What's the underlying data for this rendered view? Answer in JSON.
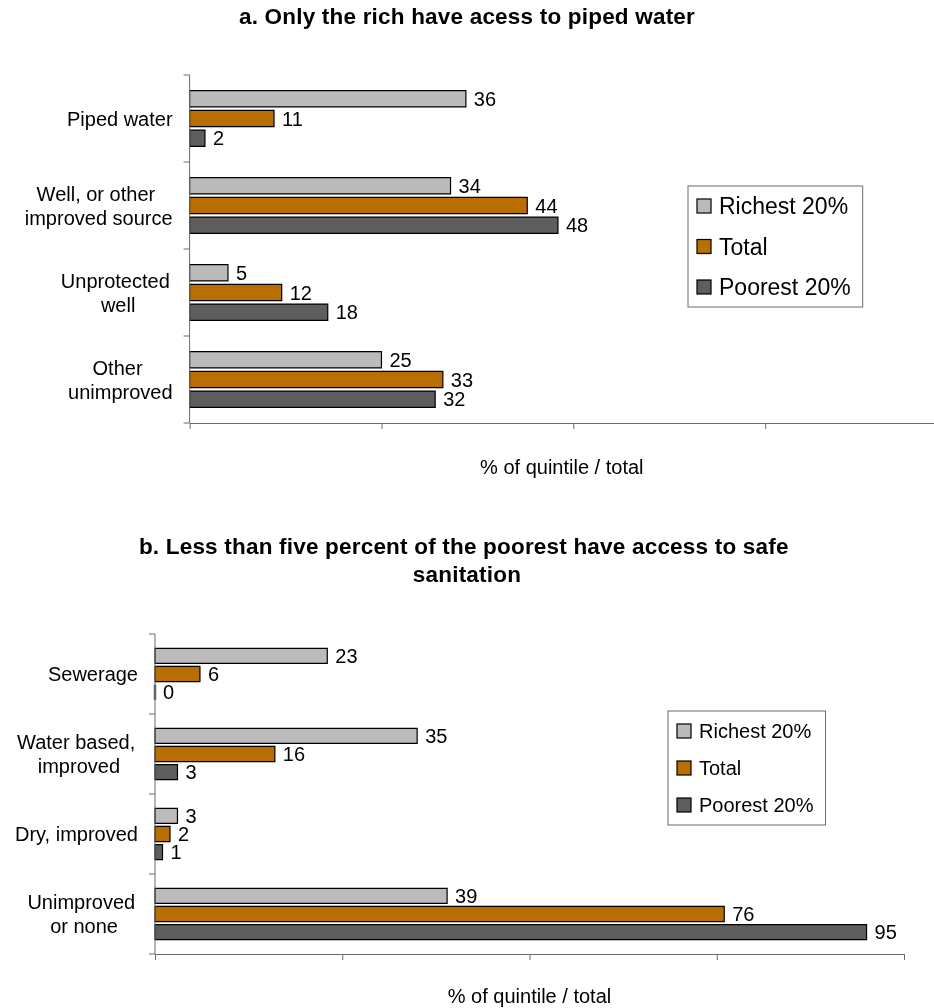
{
  "chart_data": [
    {
      "type": "bar",
      "orientation": "horizontal",
      "title": "a. Only the rich have acess to piped water",
      "xlabel": "% of quintile / total",
      "categories": [
        "Piped water",
        "Well, or other improved source",
        "Unprotected well",
        "Other unimproved"
      ],
      "series": [
        {
          "name": "Richest 20%",
          "color": "#bbbbbb",
          "values": [
            36,
            34,
            5,
            25
          ]
        },
        {
          "name": "Total",
          "color": "#b86e00",
          "values": [
            11,
            44,
            12,
            33
          ]
        },
        {
          "name": "Poorest 20%",
          "color": "#5e5e5e",
          "values": [
            2,
            48,
            18,
            32
          ]
        }
      ],
      "xlim": [
        0,
        97
      ],
      "xticks": [
        {
          "value": 0,
          "label": null
        },
        {
          "value": 25,
          "label": null
        },
        {
          "value": 50,
          "label": null
        },
        {
          "value": 75,
          "label": null
        }
      ],
      "tick_labels": "y",
      "data_labels": true,
      "legend": "right"
    },
    {
      "type": "bar",
      "orientation": "horizontal",
      "title": "b. Less than five percent of the poorest have access to safe sanitation",
      "xlabel": "% of quintile / total",
      "categories": [
        "Sewerage",
        "Water based, improved",
        "Dry, improved",
        "Unimproved or none"
      ],
      "series": [
        {
          "name": "Richest 20%",
          "color": "#bbbbbb",
          "values": [
            23,
            35,
            3,
            39
          ]
        },
        {
          "name": "Total",
          "color": "#b86e00",
          "values": [
            6,
            16,
            2,
            76
          ]
        },
        {
          "name": "Poorest 20%",
          "color": "#5e5e5e",
          "values": [
            0,
            3,
            1,
            95
          ]
        }
      ],
      "xlim": [
        0,
        100
      ],
      "xticks": [
        {
          "value": 0,
          "label": null
        },
        {
          "value": 25,
          "label": null
        },
        {
          "value": 50,
          "label": null
        },
        {
          "value": 75,
          "label": null
        },
        {
          "value": 100,
          "label": null
        }
      ],
      "tick_labels": "y",
      "data_labels": true,
      "legend": "right"
    }
  ]
}
